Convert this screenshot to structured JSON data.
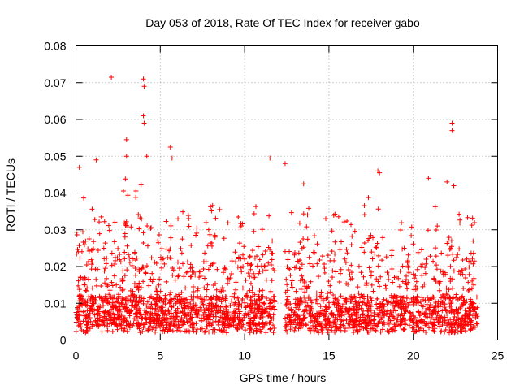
{
  "chart_data": {
    "type": "scatter",
    "title": "Day 053 of 2018, Rate Of TEC Index for receiver gabo",
    "xlabel": "GPS time / hours",
    "ylabel": "ROTI / TECUs",
    "xlim": [
      0,
      25
    ],
    "ylim": [
      0,
      0.08
    ],
    "xticks": [
      0,
      5,
      10,
      15,
      20,
      25
    ],
    "xtick_labels": [
      "0",
      "5",
      "10",
      "15",
      "20",
      "25"
    ],
    "yticks": [
      0,
      0.01,
      0.02,
      0.03,
      0.04,
      0.05,
      0.06,
      0.07,
      0.08
    ],
    "ytick_labels": [
      "0",
      "0.01",
      "0.02",
      "0.03",
      "0.04",
      "0.05",
      "0.06",
      "0.07",
      "0.08"
    ],
    "grid": true,
    "marker": "+",
    "series_color": "#ff0000",
    "gaps": [
      [
        11.8,
        12.4
      ]
    ],
    "data_extent_hours": [
      0,
      23.8
    ],
    "notable_points": [
      {
        "x": 2.1,
        "y": 0.0715
      },
      {
        "x": 4.0,
        "y": 0.071
      },
      {
        "x": 4.05,
        "y": 0.069
      },
      {
        "x": 4.0,
        "y": 0.061
      },
      {
        "x": 4.05,
        "y": 0.059
      },
      {
        "x": 22.3,
        "y": 0.059
      },
      {
        "x": 22.3,
        "y": 0.057
      },
      {
        "x": 3.0,
        "y": 0.0545
      },
      {
        "x": 5.6,
        "y": 0.0525
      },
      {
        "x": 5.7,
        "y": 0.0495
      },
      {
        "x": 11.5,
        "y": 0.0495
      },
      {
        "x": 3.0,
        "y": 0.05
      },
      {
        "x": 4.2,
        "y": 0.05
      },
      {
        "x": 1.2,
        "y": 0.049
      },
      {
        "x": 12.4,
        "y": 0.048
      },
      {
        "x": 0.2,
        "y": 0.047
      },
      {
        "x": 17.9,
        "y": 0.046
      },
      {
        "x": 18.0,
        "y": 0.0455
      },
      {
        "x": 20.9,
        "y": 0.044
      },
      {
        "x": 22.0,
        "y": 0.043
      },
      {
        "x": 22.4,
        "y": 0.042
      },
      {
        "x": 13.5,
        "y": 0.0425
      }
    ],
    "envelope": [
      {
        "x": 0.0,
        "max": 0.04
      },
      {
        "x": 0.5,
        "max": 0.044
      },
      {
        "x": 1.0,
        "max": 0.04
      },
      {
        "x": 1.5,
        "max": 0.036
      },
      {
        "x": 2.0,
        "max": 0.038
      },
      {
        "x": 2.5,
        "max": 0.038
      },
      {
        "x": 3.0,
        "max": 0.046
      },
      {
        "x": 3.5,
        "max": 0.04
      },
      {
        "x": 4.0,
        "max": 0.046
      },
      {
        "x": 4.5,
        "max": 0.034
      },
      {
        "x": 5.0,
        "max": 0.03
      },
      {
        "x": 5.5,
        "max": 0.04
      },
      {
        "x": 6.0,
        "max": 0.036
      },
      {
        "x": 6.5,
        "max": 0.038
      },
      {
        "x": 7.0,
        "max": 0.03
      },
      {
        "x": 7.5,
        "max": 0.034
      },
      {
        "x": 8.0,
        "max": 0.038
      },
      {
        "x": 8.5,
        "max": 0.036
      },
      {
        "x": 9.0,
        "max": 0.034
      },
      {
        "x": 9.5,
        "max": 0.036
      },
      {
        "x": 10.0,
        "max": 0.036
      },
      {
        "x": 10.5,
        "max": 0.038
      },
      {
        "x": 11.0,
        "max": 0.038
      },
      {
        "x": 11.6,
        "max": 0.04
      },
      {
        "x": 12.5,
        "max": 0.038
      },
      {
        "x": 13.0,
        "max": 0.036
      },
      {
        "x": 13.5,
        "max": 0.04
      },
      {
        "x": 14.0,
        "max": 0.036
      },
      {
        "x": 14.5,
        "max": 0.034
      },
      {
        "x": 15.0,
        "max": 0.036
      },
      {
        "x": 15.5,
        "max": 0.034
      },
      {
        "x": 16.0,
        "max": 0.036
      },
      {
        "x": 16.5,
        "max": 0.032
      },
      {
        "x": 17.0,
        "max": 0.036
      },
      {
        "x": 17.5,
        "max": 0.042
      },
      {
        "x": 18.0,
        "max": 0.044
      },
      {
        "x": 18.5,
        "max": 0.03
      },
      {
        "x": 19.0,
        "max": 0.028
      },
      {
        "x": 19.5,
        "max": 0.038
      },
      {
        "x": 20.0,
        "max": 0.034
      },
      {
        "x": 20.5,
        "max": 0.036
      },
      {
        "x": 21.0,
        "max": 0.038
      },
      {
        "x": 21.5,
        "max": 0.036
      },
      {
        "x": 22.0,
        "max": 0.038
      },
      {
        "x": 22.5,
        "max": 0.04
      },
      {
        "x": 23.0,
        "max": 0.034
      },
      {
        "x": 23.5,
        "max": 0.034
      },
      {
        "x": 23.8,
        "max": 0.032
      }
    ],
    "baseline_range": [
      0.002,
      0.012
    ]
  }
}
